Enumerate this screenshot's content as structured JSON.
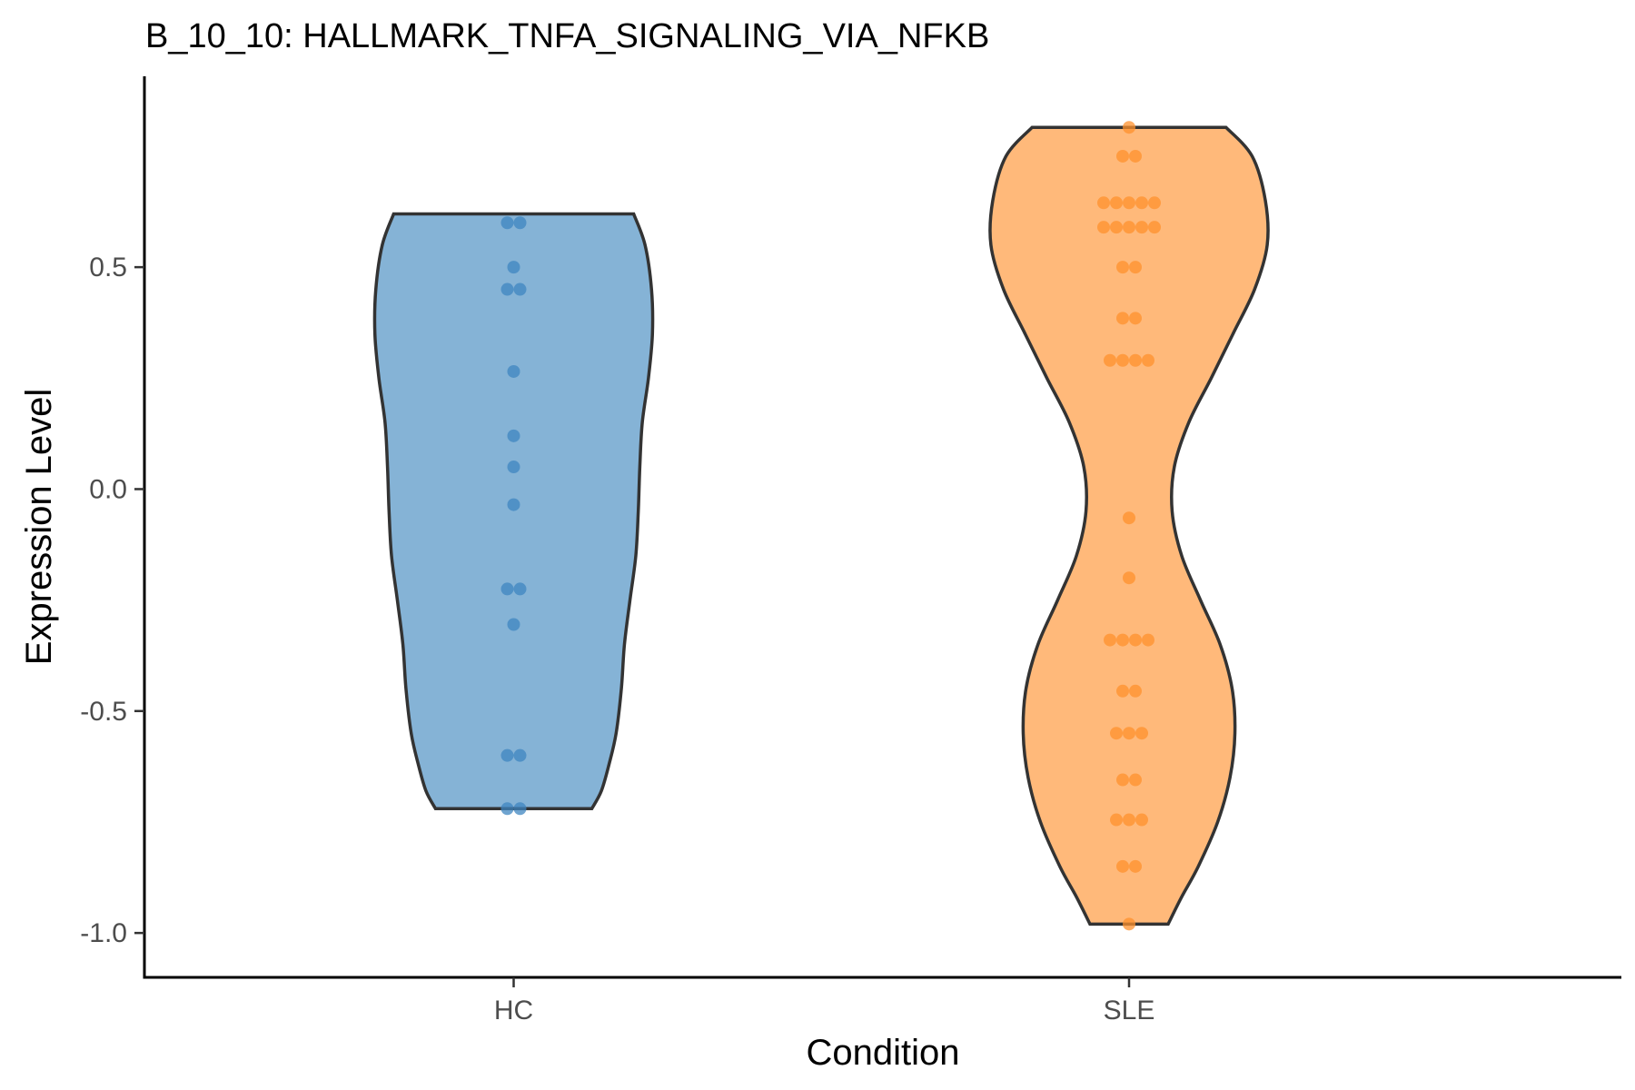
{
  "chart_data": {
    "type": "violin",
    "title": "B_10_10: HALLMARK_TNFA_SIGNALING_VIA_NFKB",
    "xlabel": "Condition",
    "ylabel": "Expression Level",
    "ylim": [
      -1.1,
      0.93
    ],
    "yticks": [
      -1.0,
      -0.5,
      0.0,
      0.5
    ],
    "ytick_labels": [
      "-1.0",
      "-0.5",
      "0.0",
      "0.5"
    ],
    "grid": false,
    "legend": "none",
    "categories": [
      "HC",
      "SLE"
    ],
    "groups": [
      {
        "category": "HC",
        "fill_color": "#85b3d6",
        "point_color": "#3f86c0",
        "points": [
          0.6,
          0.6,
          0.5,
          0.45,
          0.45,
          0.265,
          0.12,
          0.05,
          -0.035,
          -0.225,
          -0.225,
          -0.305,
          -0.6,
          -0.6,
          -0.72,
          -0.72
        ],
        "violin_profile": [
          [
            0.62,
            0.39
          ],
          [
            0.55,
            0.427
          ],
          [
            0.45,
            0.448
          ],
          [
            0.35,
            0.451
          ],
          [
            0.25,
            0.438
          ],
          [
            0.15,
            0.418
          ],
          [
            0.05,
            0.41
          ],
          [
            -0.05,
            0.405
          ],
          [
            -0.15,
            0.397
          ],
          [
            -0.25,
            0.378
          ],
          [
            -0.35,
            0.36
          ],
          [
            -0.45,
            0.35
          ],
          [
            -0.55,
            0.333
          ],
          [
            -0.62,
            0.31
          ],
          [
            -0.68,
            0.285
          ],
          [
            -0.72,
            0.254
          ]
        ]
      },
      {
        "category": "SLE",
        "fill_color": "#ffb97a",
        "point_color": "#ff922d",
        "points": [
          0.815,
          0.75,
          0.75,
          0.645,
          0.645,
          0.645,
          0.645,
          0.645,
          0.59,
          0.59,
          0.59,
          0.59,
          0.59,
          0.5,
          0.5,
          0.385,
          0.385,
          0.29,
          0.29,
          0.29,
          0.29,
          -0.065,
          -0.2,
          -0.34,
          -0.34,
          -0.34,
          -0.34,
          -0.455,
          -0.455,
          -0.55,
          -0.55,
          -0.55,
          -0.655,
          -0.655,
          -0.745,
          -0.745,
          -0.745,
          -0.85,
          -0.85,
          -0.98
        ],
        "violin_profile": [
          [
            0.815,
            0.315
          ],
          [
            0.75,
            0.4
          ],
          [
            0.65,
            0.443
          ],
          [
            0.55,
            0.449
          ],
          [
            0.45,
            0.408
          ],
          [
            0.35,
            0.338
          ],
          [
            0.25,
            0.267
          ],
          [
            0.15,
            0.194
          ],
          [
            0.05,
            0.147
          ],
          [
            -0.05,
            0.14
          ],
          [
            -0.15,
            0.171
          ],
          [
            -0.25,
            0.232
          ],
          [
            -0.35,
            0.296
          ],
          [
            -0.45,
            0.335
          ],
          [
            -0.55,
            0.344
          ],
          [
            -0.65,
            0.328
          ],
          [
            -0.75,
            0.288
          ],
          [
            -0.85,
            0.225
          ],
          [
            -0.92,
            0.17
          ],
          [
            -0.98,
            0.127
          ]
        ]
      }
    ]
  }
}
